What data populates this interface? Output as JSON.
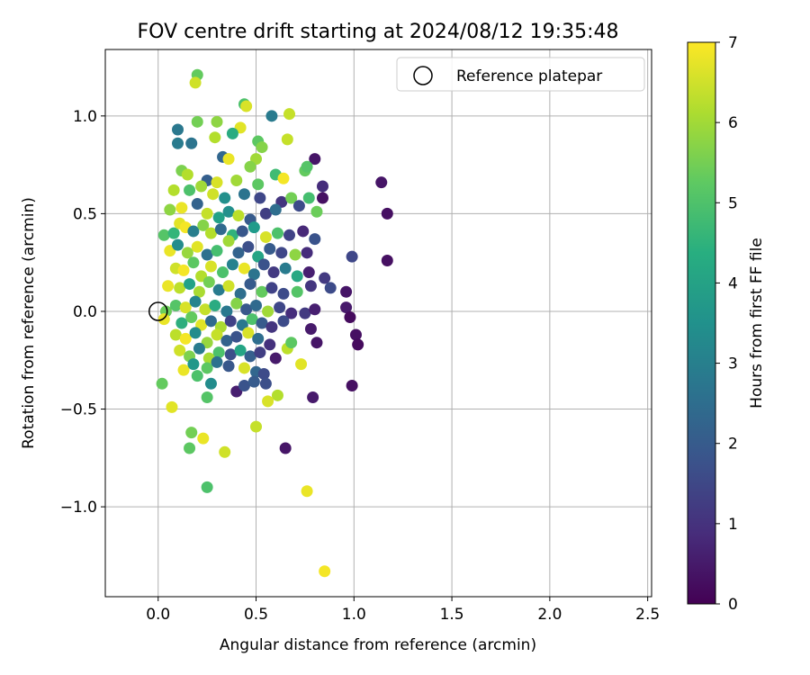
{
  "chart_data": {
    "type": "scatter",
    "title": "FOV centre drift starting at 2024/08/12 19:35:48",
    "xlabel": "Angular distance from reference (arcmin)",
    "ylabel": "Rotation from reference (arcmin)",
    "xlim": [
      -0.27,
      2.52
    ],
    "ylim": [
      -1.46,
      1.34
    ],
    "x_ticks": [
      0.0,
      0.5,
      1.0,
      1.5,
      2.0,
      2.5
    ],
    "x_tick_labels": [
      "0.0",
      "0.5",
      "1.0",
      "1.5",
      "2.0",
      "2.5"
    ],
    "y_ticks": [
      -1.0,
      -0.5,
      0.0,
      0.5,
      1.0
    ],
    "y_tick_labels": [
      "−1.0",
      "−0.5",
      "0.0",
      "0.5",
      "1.0"
    ],
    "grid": true,
    "legend": {
      "location": "top-right",
      "entries": [
        {
          "label": "Reference platepar",
          "marker": "open-circle"
        }
      ]
    },
    "reference_point": {
      "x": 0.0,
      "y": 0.0
    },
    "colorbar": {
      "label": "Hours from first FF file",
      "min": 0,
      "max": 7,
      "ticks": [
        0,
        1,
        2,
        3,
        4,
        5,
        6,
        7
      ],
      "tick_labels": [
        "0",
        "1",
        "2",
        "3",
        "4",
        "5",
        "6",
        "7"
      ],
      "colormap": "viridis"
    },
    "series": [
      {
        "points": [
          [
            0.2,
            1.21,
            5.3
          ],
          [
            0.19,
            1.17,
            6.5
          ],
          [
            0.44,
            1.06,
            5.0
          ],
          [
            0.45,
            1.05,
            6.6
          ],
          [
            0.58,
            1.0,
            2.9
          ],
          [
            0.2,
            0.97,
            5.5
          ],
          [
            0.3,
            0.97,
            5.8
          ],
          [
            0.1,
            0.93,
            2.8
          ],
          [
            0.42,
            0.94,
            6.7
          ],
          [
            0.67,
            1.01,
            6.4
          ],
          [
            0.38,
            0.91,
            4.3
          ],
          [
            0.51,
            0.87,
            5.2
          ],
          [
            0.53,
            0.84,
            5.7
          ],
          [
            0.17,
            0.86,
            2.7
          ],
          [
            0.66,
            0.88,
            6.4
          ],
          [
            0.29,
            0.89,
            6.2
          ],
          [
            0.8,
            0.78,
            0.4
          ],
          [
            0.75,
            0.72,
            5.3
          ],
          [
            0.76,
            0.74,
            5.1
          ],
          [
            0.1,
            0.86,
            2.9
          ],
          [
            0.33,
            0.79,
            2.3
          ],
          [
            0.5,
            0.78,
            6.0
          ],
          [
            0.47,
            0.74,
            5.7
          ],
          [
            0.36,
            0.78,
            6.8
          ],
          [
            0.12,
            0.72,
            5.6
          ],
          [
            0.15,
            0.7,
            6.2
          ],
          [
            0.25,
            0.67,
            2.1
          ],
          [
            0.3,
            0.66,
            6.6
          ],
          [
            0.4,
            0.67,
            6.0
          ],
          [
            0.51,
            0.65,
            5.2
          ],
          [
            0.6,
            0.7,
            4.8
          ],
          [
            0.64,
            0.68,
            6.9
          ],
          [
            0.84,
            0.64,
            0.9
          ],
          [
            0.08,
            0.62,
            6.2
          ],
          [
            0.16,
            0.62,
            5.0
          ],
          [
            0.22,
            0.64,
            6.0
          ],
          [
            0.28,
            0.6,
            6.5
          ],
          [
            0.34,
            0.58,
            3.5
          ],
          [
            0.44,
            0.6,
            2.7
          ],
          [
            0.52,
            0.58,
            1.5
          ],
          [
            0.63,
            0.56,
            1.1
          ],
          [
            0.68,
            0.58,
            5.5
          ],
          [
            0.77,
            0.58,
            4.9
          ],
          [
            0.84,
            0.58,
            0.3
          ],
          [
            1.14,
            0.66,
            0.4
          ],
          [
            0.06,
            0.52,
            5.8
          ],
          [
            0.12,
            0.53,
            6.8
          ],
          [
            0.2,
            0.55,
            2.2
          ],
          [
            0.25,
            0.5,
            6.4
          ],
          [
            0.31,
            0.48,
            4.0
          ],
          [
            0.36,
            0.51,
            3.5
          ],
          [
            0.41,
            0.49,
            6.3
          ],
          [
            0.47,
            0.47,
            2.0
          ],
          [
            0.55,
            0.5,
            1.3
          ],
          [
            0.6,
            0.52,
            2.5
          ],
          [
            0.72,
            0.54,
            1.6
          ],
          [
            0.81,
            0.51,
            5.4
          ],
          [
            1.17,
            0.5,
            0.3
          ],
          [
            0.03,
            0.39,
            5.1
          ],
          [
            0.08,
            0.4,
            4.6
          ],
          [
            0.11,
            0.45,
            6.7
          ],
          [
            0.14,
            0.43,
            6.9
          ],
          [
            0.18,
            0.41,
            3.0
          ],
          [
            0.23,
            0.44,
            5.7
          ],
          [
            0.27,
            0.4,
            6.2
          ],
          [
            0.32,
            0.42,
            2.4
          ],
          [
            0.38,
            0.39,
            4.5
          ],
          [
            0.43,
            0.41,
            1.9
          ],
          [
            0.49,
            0.43,
            3.8
          ],
          [
            0.55,
            0.38,
            6.6
          ],
          [
            0.61,
            0.4,
            5.0
          ],
          [
            0.67,
            0.39,
            1.4
          ],
          [
            0.74,
            0.41,
            0.8
          ],
          [
            0.8,
            0.37,
            1.8
          ],
          [
            0.06,
            0.31,
            6.8
          ],
          [
            0.1,
            0.34,
            3.4
          ],
          [
            0.15,
            0.3,
            5.9
          ],
          [
            0.2,
            0.33,
            6.7
          ],
          [
            0.25,
            0.29,
            2.6
          ],
          [
            0.3,
            0.31,
            4.9
          ],
          [
            0.36,
            0.36,
            6.0
          ],
          [
            0.41,
            0.3,
            2.2
          ],
          [
            0.46,
            0.33,
            1.7
          ],
          [
            0.51,
            0.28,
            4.1
          ],
          [
            0.57,
            0.32,
            2.0
          ],
          [
            0.63,
            0.3,
            1.5
          ],
          [
            0.7,
            0.29,
            5.8
          ],
          [
            0.76,
            0.3,
            0.9
          ],
          [
            0.99,
            0.28,
            1.5
          ],
          [
            1.17,
            0.26,
            0.3
          ],
          [
            0.09,
            0.22,
            6.5
          ],
          [
            0.13,
            0.21,
            6.9
          ],
          [
            0.18,
            0.25,
            5.2
          ],
          [
            0.22,
            0.18,
            6.2
          ],
          [
            0.27,
            0.23,
            6.6
          ],
          [
            0.33,
            0.2,
            5.0
          ],
          [
            0.38,
            0.24,
            3.1
          ],
          [
            0.44,
            0.22,
            6.8
          ],
          [
            0.49,
            0.19,
            2.7
          ],
          [
            0.54,
            0.24,
            1.8
          ],
          [
            0.59,
            0.2,
            1.2
          ],
          [
            0.65,
            0.22,
            2.9
          ],
          [
            0.71,
            0.18,
            4.2
          ],
          [
            0.77,
            0.2,
            0.6
          ],
          [
            0.85,
            0.17,
            1.2
          ],
          [
            0.05,
            0.13,
            6.8
          ],
          [
            0.11,
            0.12,
            6.3
          ],
          [
            0.16,
            0.14,
            4.0
          ],
          [
            0.21,
            0.1,
            6.1
          ],
          [
            0.26,
            0.15,
            5.5
          ],
          [
            0.31,
            0.11,
            2.9
          ],
          [
            0.36,
            0.13,
            6.5
          ],
          [
            0.42,
            0.09,
            2.5
          ],
          [
            0.47,
            0.14,
            2.0
          ],
          [
            0.53,
            0.1,
            5.3
          ],
          [
            0.58,
            0.12,
            1.4
          ],
          [
            0.64,
            0.09,
            1.6
          ],
          [
            0.71,
            0.1,
            5.1
          ],
          [
            0.78,
            0.13,
            1.1
          ],
          [
            0.88,
            0.12,
            1.6
          ],
          [
            0.96,
            0.1,
            0.4
          ],
          [
            0.04,
            0.0,
            5.4
          ],
          [
            0.09,
            0.03,
            5.1
          ],
          [
            0.14,
            0.02,
            6.6
          ],
          [
            0.19,
            0.05,
            3.2
          ],
          [
            0.24,
            0.01,
            6.4
          ],
          [
            0.29,
            0.03,
            4.3
          ],
          [
            0.35,
            0.0,
            2.8
          ],
          [
            0.4,
            0.04,
            5.7
          ],
          [
            0.45,
            0.01,
            1.9
          ],
          [
            0.5,
            0.03,
            2.4
          ],
          [
            0.56,
            0.0,
            6.0
          ],
          [
            0.62,
            0.02,
            1.5
          ],
          [
            0.68,
            -0.01,
            0.9
          ],
          [
            0.75,
            -0.01,
            1.2
          ],
          [
            0.8,
            0.01,
            0.6
          ],
          [
            0.96,
            0.02,
            0.5
          ],
          [
            0.98,
            -0.03,
            0.2
          ],
          [
            0.03,
            -0.04,
            6.8
          ],
          [
            0.12,
            -0.06,
            4.4
          ],
          [
            0.17,
            -0.03,
            5.3
          ],
          [
            0.22,
            -0.07,
            6.7
          ],
          [
            0.27,
            -0.05,
            2.4
          ],
          [
            0.32,
            -0.08,
            6.1
          ],
          [
            0.37,
            -0.05,
            1.4
          ],
          [
            0.43,
            -0.07,
            2.8
          ],
          [
            0.48,
            -0.04,
            5.0
          ],
          [
            0.53,
            -0.06,
            2.0
          ],
          [
            0.58,
            -0.08,
            1.1
          ],
          [
            0.64,
            -0.05,
            1.6
          ],
          [
            0.78,
            -0.09,
            0.5
          ],
          [
            0.09,
            -0.12,
            6.3
          ],
          [
            0.14,
            -0.14,
            6.9
          ],
          [
            0.19,
            -0.11,
            3.4
          ],
          [
            0.25,
            -0.16,
            5.9
          ],
          [
            0.3,
            -0.12,
            6.4
          ],
          [
            0.35,
            -0.15,
            2.2
          ],
          [
            0.4,
            -0.13,
            1.8
          ],
          [
            0.46,
            -0.11,
            6.6
          ],
          [
            0.51,
            -0.14,
            2.5
          ],
          [
            0.57,
            -0.17,
            1.0
          ],
          [
            0.66,
            -0.19,
            6.3
          ],
          [
            0.68,
            -0.16,
            5.2
          ],
          [
            0.81,
            -0.16,
            0.4
          ],
          [
            1.01,
            -0.12,
            0.3
          ],
          [
            1.02,
            -0.17,
            0.2
          ],
          [
            0.11,
            -0.2,
            6.5
          ],
          [
            0.16,
            -0.23,
            5.6
          ],
          [
            0.21,
            -0.19,
            2.9
          ],
          [
            0.26,
            -0.24,
            6.1
          ],
          [
            0.31,
            -0.21,
            5.0
          ],
          [
            0.37,
            -0.22,
            1.7
          ],
          [
            0.42,
            -0.2,
            4.1
          ],
          [
            0.47,
            -0.23,
            2.1
          ],
          [
            0.52,
            -0.21,
            1.3
          ],
          [
            0.6,
            -0.24,
            0.5
          ],
          [
            0.13,
            -0.3,
            6.8
          ],
          [
            0.18,
            -0.27,
            3.7
          ],
          [
            0.25,
            -0.29,
            5.2
          ],
          [
            0.3,
            -0.26,
            2.6
          ],
          [
            0.36,
            -0.28,
            1.9
          ],
          [
            0.44,
            -0.29,
            6.6
          ],
          [
            0.5,
            -0.31,
            2.3
          ],
          [
            0.54,
            -0.32,
            1.6
          ],
          [
            0.73,
            -0.27,
            6.7
          ],
          [
            0.02,
            -0.37,
            5.3
          ],
          [
            0.2,
            -0.33,
            5.0
          ],
          [
            0.27,
            -0.37,
            3.4
          ],
          [
            0.4,
            -0.41,
            0.6
          ],
          [
            0.44,
            -0.38,
            1.8
          ],
          [
            0.49,
            -0.36,
            2.0
          ],
          [
            0.55,
            -0.37,
            1.7
          ],
          [
            0.61,
            -0.43,
            6.2
          ],
          [
            0.79,
            -0.44,
            0.5
          ],
          [
            0.99,
            -0.38,
            0.3
          ],
          [
            0.25,
            -0.44,
            5.1
          ],
          [
            0.56,
            -0.46,
            6.6
          ],
          [
            0.07,
            -0.49,
            6.7
          ],
          [
            0.5,
            -0.59,
            6.4
          ],
          [
            0.17,
            -0.62,
            5.5
          ],
          [
            0.23,
            -0.65,
            6.8
          ],
          [
            0.16,
            -0.7,
            5.2
          ],
          [
            0.65,
            -0.7,
            0.4
          ],
          [
            0.34,
            -0.72,
            6.5
          ],
          [
            0.25,
            -0.9,
            5.0
          ],
          [
            0.76,
            -0.92,
            6.8
          ],
          [
            0.85,
            -1.33,
            6.9
          ]
        ]
      }
    ]
  }
}
